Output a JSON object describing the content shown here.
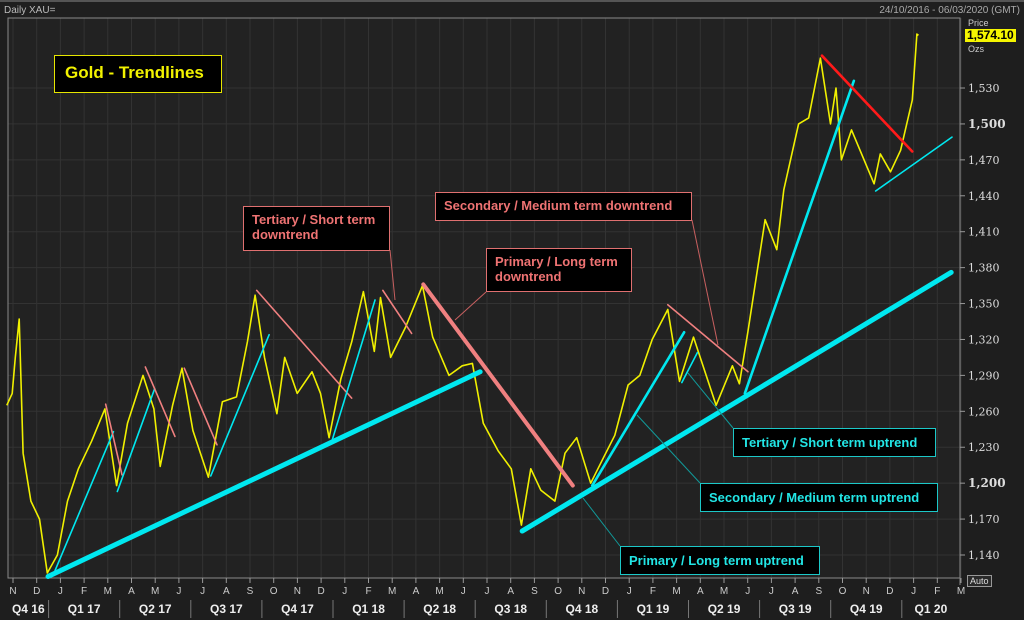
{
  "header": {
    "instrument": "Daily XAU=",
    "date_range": "24/10/2016 - 06/03/2020 (GMT)"
  },
  "price_panel": {
    "label": "Price",
    "last_price": "1,574.10",
    "unit": "Ozs",
    "auto_label": "Auto"
  },
  "title": "Gold - Trendlines",
  "annotations": {
    "tertiary_down": "Tertiary / Short term\ndowntrend",
    "secondary_down": "Secondary / Medium term downtrend",
    "primary_down": "Primary / Long term\ndowntrend",
    "tertiary_up": "Tertiary / Short term uptrend",
    "secondary_up": "Secondary / Medium term uptrend",
    "primary_up": "Primary / Long term uptrend"
  },
  "colors": {
    "price": "#f0f000",
    "uptrend": "#00e8f0",
    "downtrend": "#f08080",
    "recent_downtrend": "#ff1a1a",
    "background": "#222222"
  },
  "chart_data": {
    "type": "line",
    "title": "Gold - Trendlines",
    "ylim": [
      1120,
      1580
    ],
    "yticks": [
      1140,
      1170,
      1200,
      1230,
      1260,
      1290,
      1320,
      1350,
      1380,
      1410,
      1440,
      1470,
      1500,
      1530
    ],
    "ytick_labels": [
      "1,140",
      "1,170",
      "1,200",
      "1,230",
      "1,260",
      "1,290",
      "1,320",
      "1,350",
      "1,380",
      "1,410",
      "1,440",
      "1,470",
      "1,500",
      "1,530"
    ],
    "xlim": [
      "2016-10-24",
      "2020-03-06"
    ],
    "month_labels": [
      "N",
      "D",
      "J",
      "F",
      "M",
      "A",
      "M",
      "J",
      "J",
      "A",
      "S",
      "O",
      "N",
      "D",
      "J",
      "F",
      "M",
      "A",
      "M",
      "J",
      "J",
      "A",
      "S",
      "O",
      "N",
      "D",
      "J",
      "F",
      "M",
      "A",
      "M",
      "J",
      "J",
      "A",
      "S",
      "O",
      "N",
      "D",
      "J",
      "F",
      "M"
    ],
    "quarter_labels": [
      "Q4 16",
      "Q1 17",
      "Q2 17",
      "Q3 17",
      "Q4 17",
      "Q1 18",
      "Q2 18",
      "Q3 18",
      "Q4 18",
      "Q1 19",
      "Q2 19",
      "Q3 19",
      "Q4 19",
      "Q1 20"
    ],
    "grid": true,
    "series": [
      {
        "points": [
          [
            "2016-10-24",
            1265
          ],
          [
            "2016-10-31",
            1275
          ],
          [
            "2016-11-04",
            1305
          ],
          [
            "2016-11-09",
            1337
          ],
          [
            "2016-11-14",
            1225
          ],
          [
            "2016-11-24",
            1185
          ],
          [
            "2016-12-05",
            1170
          ],
          [
            "2016-12-15",
            1125
          ],
          [
            "2016-12-28",
            1140
          ],
          [
            "2017-01-10",
            1185
          ],
          [
            "2017-01-24",
            1212
          ],
          [
            "2017-02-10",
            1235
          ],
          [
            "2017-02-27",
            1262
          ],
          [
            "2017-03-14",
            1198
          ],
          [
            "2017-03-28",
            1250
          ],
          [
            "2017-04-17",
            1290
          ],
          [
            "2017-05-01",
            1262
          ],
          [
            "2017-05-09",
            1214
          ],
          [
            "2017-05-25",
            1265
          ],
          [
            "2017-06-06",
            1296
          ],
          [
            "2017-06-20",
            1244
          ],
          [
            "2017-07-10",
            1205
          ],
          [
            "2017-07-28",
            1268
          ],
          [
            "2017-08-15",
            1272
          ],
          [
            "2017-08-29",
            1318
          ],
          [
            "2017-09-08",
            1357
          ],
          [
            "2017-09-20",
            1305
          ],
          [
            "2017-10-06",
            1258
          ],
          [
            "2017-10-16",
            1305
          ],
          [
            "2017-11-01",
            1275
          ],
          [
            "2017-11-20",
            1293
          ],
          [
            "2017-12-01",
            1275
          ],
          [
            "2017-12-12",
            1238
          ],
          [
            "2017-12-27",
            1287
          ],
          [
            "2018-01-10",
            1318
          ],
          [
            "2018-01-25",
            1360
          ],
          [
            "2018-02-08",
            1310
          ],
          [
            "2018-02-16",
            1355
          ],
          [
            "2018-03-01",
            1305
          ],
          [
            "2018-03-20",
            1330
          ],
          [
            "2018-04-11",
            1365
          ],
          [
            "2018-04-24",
            1322
          ],
          [
            "2018-05-15",
            1290
          ],
          [
            "2018-06-01",
            1298
          ],
          [
            "2018-06-14",
            1300
          ],
          [
            "2018-06-28",
            1250
          ],
          [
            "2018-07-17",
            1227
          ],
          [
            "2018-08-03",
            1212
          ],
          [
            "2018-08-16",
            1165
          ],
          [
            "2018-08-28",
            1212
          ],
          [
            "2018-09-10",
            1194
          ],
          [
            "2018-09-28",
            1185
          ],
          [
            "2018-10-11",
            1225
          ],
          [
            "2018-10-26",
            1238
          ],
          [
            "2018-11-13",
            1200
          ],
          [
            "2018-11-30",
            1222
          ],
          [
            "2018-12-14",
            1240
          ],
          [
            "2018-12-31",
            1282
          ],
          [
            "2019-01-15",
            1290
          ],
          [
            "2019-01-31",
            1320
          ],
          [
            "2019-02-20",
            1345
          ],
          [
            "2019-03-07",
            1285
          ],
          [
            "2019-03-25",
            1322
          ],
          [
            "2019-04-23",
            1265
          ],
          [
            "2019-05-14",
            1298
          ],
          [
            "2019-05-23",
            1283
          ],
          [
            "2019-06-03",
            1327
          ],
          [
            "2019-06-25",
            1420
          ],
          [
            "2019-07-10",
            1395
          ],
          [
            "2019-07-19",
            1445
          ],
          [
            "2019-08-07",
            1500
          ],
          [
            "2019-08-20",
            1505
          ],
          [
            "2019-09-04",
            1555
          ],
          [
            "2019-09-17",
            1500
          ],
          [
            "2019-09-24",
            1530
          ],
          [
            "2019-10-01",
            1470
          ],
          [
            "2019-10-14",
            1495
          ],
          [
            "2019-11-12",
            1450
          ],
          [
            "2019-11-20",
            1475
          ],
          [
            "2019-12-03",
            1460
          ],
          [
            "2019-12-16",
            1478
          ],
          [
            "2019-12-31",
            1520
          ],
          [
            "2020-01-06",
            1575
          ],
          [
            "2020-01-08",
            1574
          ]
        ]
      }
    ],
    "trendlines": [
      {
        "kind": "primary-up",
        "start": [
          "2016-12-16",
          1122
        ],
        "end": [
          "2018-06-24",
          1293
        ]
      },
      {
        "kind": "tertiary-up",
        "start": [
          "2016-12-25",
          1127
        ],
        "end": [
          "2017-03-10",
          1243
        ]
      },
      {
        "kind": "tertiary-down",
        "start": [
          "2017-02-28",
          1266
        ],
        "end": [
          "2017-03-21",
          1207
        ]
      },
      {
        "kind": "tertiary-up",
        "start": [
          "2017-03-15",
          1193
        ],
        "end": [
          "2017-05-02",
          1279
        ]
      },
      {
        "kind": "tertiary-down",
        "start": [
          "2017-04-20",
          1297
        ],
        "end": [
          "2017-05-28",
          1239
        ]
      },
      {
        "kind": "tertiary-down",
        "start": [
          "2017-06-09",
          1296
        ],
        "end": [
          "2017-07-21",
          1232
        ]
      },
      {
        "kind": "tertiary-up",
        "start": [
          "2017-07-13",
          1206
        ],
        "end": [
          "2017-09-26",
          1324
        ]
      },
      {
        "kind": "tertiary-down",
        "start": [
          "2017-09-10",
          1361
        ],
        "end": [
          "2018-01-10",
          1271
        ]
      },
      {
        "kind": "tertiary-up",
        "start": [
          "2017-12-16",
          1236
        ],
        "end": [
          "2018-02-09",
          1353
        ]
      },
      {
        "kind": "tertiary-down",
        "start": [
          "2018-02-19",
          1361
        ],
        "end": [
          "2018-03-28",
          1325
        ]
      },
      {
        "kind": "primary-down",
        "start": [
          "2018-04-12",
          1366
        ],
        "end": [
          "2018-10-21",
          1198
        ]
      },
      {
        "kind": "primary-up",
        "start": [
          "2018-08-17",
          1160
        ],
        "end": [
          "2020-02-19",
          1376
        ]
      },
      {
        "kind": "secondary-up",
        "start": [
          "2018-11-15",
          1198
        ],
        "end": [
          "2019-03-13",
          1326
        ]
      },
      {
        "kind": "tertiary-up",
        "start": [
          "2019-03-10",
          1284
        ],
        "end": [
          "2019-03-30",
          1309
        ]
      },
      {
        "kind": "secondary-down",
        "start": [
          "2019-02-20",
          1349
        ],
        "end": [
          "2019-06-03",
          1293
        ]
      },
      {
        "kind": "secondary-up",
        "start": [
          "2019-05-30",
          1275
        ],
        "end": [
          "2019-10-17",
          1536
        ]
      },
      {
        "kind": "recent-down",
        "start": [
          "2019-09-06",
          1557
        ],
        "end": [
          "2019-12-31",
          1477
        ]
      },
      {
        "kind": "tertiary-up",
        "start": [
          "2019-11-14",
          1444
        ],
        "end": [
          "2020-02-20",
          1489
        ]
      }
    ]
  }
}
